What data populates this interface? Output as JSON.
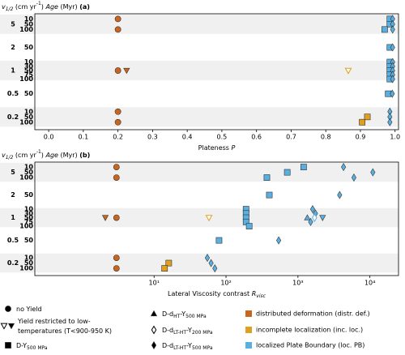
{
  "chart_data": [
    {
      "type": "scatter",
      "header": [
        {
          "text": "v",
          "italic": true
        },
        {
          "text": "1/2",
          "sub": true,
          "italic": true
        },
        {
          "text": " (cm yr"
        },
        {
          "text": "-1",
          "sup": true
        },
        {
          "text": ") "
        },
        {
          "text": "Age",
          "italic": true
        },
        {
          "text": " (Myr) "
        },
        {
          "text": "(a)",
          "bold": true
        }
      ],
      "xlabel": [
        {
          "text": "Plateness "
        },
        {
          "text": "P",
          "italic": true
        }
      ],
      "xlim": [
        -0.04,
        1.01
      ],
      "xticks": [
        {
          "value": 0,
          "label": "0.0"
        },
        0.1,
        0.2,
        0.3,
        0.4,
        0.5,
        0.6,
        0.7,
        0.8,
        0.9,
        {
          "value": 1,
          "label": "1.0"
        }
      ],
      "groups": [
        {
          "v": "5",
          "ages": [
            "10",
            "50",
            "100"
          ]
        },
        {
          "v": "2",
          "ages": [
            "50"
          ]
        },
        {
          "v": "1",
          "ages": [
            "10",
            "30",
            "50",
            "75",
            "100"
          ]
        },
        {
          "v": "0.5",
          "ages": [
            "50"
          ]
        },
        {
          "v": "0.2",
          "ages": [
            "10",
            "50",
            "100"
          ]
        }
      ],
      "points": [
        {
          "v": "5",
          "age": "10",
          "x": 0.2,
          "marker": "circle",
          "color": "#c9651c"
        },
        {
          "v": "5",
          "age": "100",
          "x": 0.2,
          "marker": "circle",
          "color": "#c9651c"
        },
        {
          "v": "5",
          "age": "10",
          "x": 0.985,
          "marker": "square",
          "color": "#58afe0"
        },
        {
          "v": "5",
          "age": "50",
          "x": 0.985,
          "marker": "square",
          "color": "#58afe0"
        },
        {
          "v": "5",
          "age": "100",
          "x": 0.97,
          "marker": "square",
          "color": "#58afe0"
        },
        {
          "v": "5",
          "age": "10",
          "x": 0.993,
          "marker": "diamond",
          "color": "#58afe0"
        },
        {
          "v": "5",
          "age": "50",
          "x": 0.993,
          "marker": "diamond",
          "color": "#58afe0"
        },
        {
          "v": "5",
          "age": "100",
          "x": 0.993,
          "marker": "diamond",
          "color": "#58afe0"
        },
        {
          "v": "2",
          "age": "50",
          "x": 0.985,
          "marker": "square",
          "color": "#58afe0"
        },
        {
          "v": "2",
          "age": "50",
          "x": 0.993,
          "marker": "diamond",
          "color": "#58afe0"
        },
        {
          "v": "1",
          "age": "50",
          "x": 0.2,
          "marker": "circle",
          "color": "#c9651c"
        },
        {
          "v": "1",
          "age": "50",
          "x": 0.225,
          "marker": "triangle-down",
          "color": "#c9651c"
        },
        {
          "v": "1",
          "age": "50",
          "x": 0.865,
          "marker": "triangle-down",
          "color": "#dfa020",
          "filled": false
        },
        {
          "v": "1",
          "age": "10",
          "x": 0.985,
          "marker": "square",
          "color": "#58afe0"
        },
        {
          "v": "1",
          "age": "30",
          "x": 0.985,
          "marker": "square",
          "color": "#58afe0"
        },
        {
          "v": "1",
          "age": "50",
          "x": 0.985,
          "marker": "square",
          "color": "#58afe0"
        },
        {
          "v": "1",
          "age": "75",
          "x": 0.985,
          "marker": "square",
          "color": "#58afe0"
        },
        {
          "v": "1",
          "age": "100",
          "x": 0.985,
          "marker": "square",
          "color": "#58afe0"
        },
        {
          "v": "1",
          "age": "10",
          "x": 0.993,
          "marker": "diamond",
          "color": "#58afe0"
        },
        {
          "v": "1",
          "age": "30",
          "x": 0.993,
          "marker": "diamond",
          "color": "#58afe0"
        },
        {
          "v": "1",
          "age": "50",
          "x": 0.993,
          "marker": "diamond",
          "color": "#58afe0"
        },
        {
          "v": "1",
          "age": "75",
          "x": 0.993,
          "marker": "diamond",
          "color": "#58afe0"
        },
        {
          "v": "1",
          "age": "100",
          "x": 0.993,
          "marker": "diamond",
          "color": "#58afe0"
        },
        {
          "v": "0.5",
          "age": "50",
          "x": 0.98,
          "marker": "square",
          "color": "#58afe0"
        },
        {
          "v": "0.5",
          "age": "50",
          "x": 0.992,
          "marker": "diamond",
          "color": "#58afe0"
        },
        {
          "v": "0.2",
          "age": "10",
          "x": 0.2,
          "marker": "circle",
          "color": "#c9651c"
        },
        {
          "v": "0.2",
          "age": "100",
          "x": 0.2,
          "marker": "circle",
          "color": "#c9651c"
        },
        {
          "v": "0.2",
          "age": "50",
          "x": 0.92,
          "marker": "square",
          "color": "#dfa020"
        },
        {
          "v": "0.2",
          "age": "100",
          "x": 0.905,
          "marker": "square",
          "color": "#dfa020"
        },
        {
          "v": "0.2",
          "age": "10",
          "x": 0.985,
          "marker": "diamond",
          "color": "#58afe0"
        },
        {
          "v": "0.2",
          "age": "50",
          "x": 0.985,
          "marker": "diamond",
          "color": "#58afe0"
        },
        {
          "v": "0.2",
          "age": "100",
          "x": 0.985,
          "marker": "diamond",
          "color": "#58afe0"
        }
      ]
    },
    {
      "type": "scatter",
      "log_x": true,
      "header": [
        {
          "text": "v",
          "italic": true
        },
        {
          "text": "1/2",
          "sub": true,
          "italic": true
        },
        {
          "text": " (cm yr"
        },
        {
          "text": "-1",
          "sup": true
        },
        {
          "text": ") "
        },
        {
          "text": "Age",
          "italic": true
        },
        {
          "text": " (Myr) "
        },
        {
          "text": "(b)",
          "bold": true
        }
      ],
      "xlabel": [
        {
          "text": "Lateral Viscosity contrast "
        },
        {
          "text": "R",
          "italic": true
        },
        {
          "text": "visc",
          "sub": true,
          "italic": true
        }
      ],
      "xlim": [
        0.22,
        25000
      ],
      "xticks": [
        {
          "value": 10,
          "label": "10¹"
        },
        {
          "value": 100,
          "label": "10²"
        },
        {
          "value": 1000,
          "label": "10³"
        },
        {
          "value": 10000,
          "label": "10⁴"
        }
      ],
      "groups": [
        {
          "v": "5",
          "ages": [
            "10",
            "50",
            "100"
          ]
        },
        {
          "v": "2",
          "ages": [
            "50"
          ]
        },
        {
          "v": "1",
          "ages": [
            "10",
            "30",
            "50",
            "75",
            "100"
          ]
        },
        {
          "v": "0.5",
          "ages": [
            "50"
          ]
        },
        {
          "v": "0.2",
          "ages": [
            "10",
            "50",
            "100"
          ]
        }
      ],
      "points": [
        {
          "v": "5",
          "age": "10",
          "x": 3,
          "marker": "circle",
          "color": "#c9651c"
        },
        {
          "v": "5",
          "age": "100",
          "x": 3,
          "marker": "circle",
          "color": "#c9651c"
        },
        {
          "v": "5",
          "age": "10",
          "x": 1200,
          "marker": "square",
          "color": "#58afe0"
        },
        {
          "v": "5",
          "age": "50",
          "x": 710,
          "marker": "square",
          "color": "#58afe0"
        },
        {
          "v": "5",
          "age": "100",
          "x": 370,
          "marker": "square",
          "color": "#58afe0"
        },
        {
          "v": "5",
          "age": "10",
          "x": 4300,
          "marker": "diamond",
          "color": "#58afe0"
        },
        {
          "v": "5",
          "age": "50",
          "x": 11000,
          "marker": "diamond",
          "color": "#58afe0"
        },
        {
          "v": "5",
          "age": "100",
          "x": 6000,
          "marker": "diamond",
          "color": "#58afe0"
        },
        {
          "v": "2",
          "age": "50",
          "x": 400,
          "marker": "square",
          "color": "#58afe0"
        },
        {
          "v": "2",
          "age": "50",
          "x": 3800,
          "marker": "diamond",
          "color": "#58afe0"
        },
        {
          "v": "1",
          "age": "50",
          "x": 2.1,
          "marker": "triangle-down",
          "color": "#c9651c"
        },
        {
          "v": "1",
          "age": "50",
          "x": 3,
          "marker": "circle",
          "color": "#c9651c"
        },
        {
          "v": "1",
          "age": "50",
          "x": 58,
          "marker": "triangle-down",
          "color": "#dfa020",
          "filled": false
        },
        {
          "v": "1",
          "age": "10",
          "x": 190,
          "marker": "square",
          "color": "#58afe0"
        },
        {
          "v": "1",
          "age": "30",
          "x": 190,
          "marker": "square",
          "color": "#58afe0"
        },
        {
          "v": "1",
          "age": "50",
          "x": 190,
          "marker": "square",
          "color": "#58afe0"
        },
        {
          "v": "1",
          "age": "75",
          "x": 190,
          "marker": "square",
          "color": "#58afe0"
        },
        {
          "v": "1",
          "age": "100",
          "x": 210,
          "marker": "square",
          "color": "#58afe0"
        },
        {
          "v": "1",
          "age": "50",
          "x": 1350,
          "marker": "triangle-up",
          "color": "#58afe0"
        },
        {
          "v": "1",
          "age": "10",
          "x": 1600,
          "marker": "diamond",
          "color": "#58afe0"
        },
        {
          "v": "1",
          "age": "30",
          "x": 1750,
          "marker": "diamond",
          "color": "#58afe0"
        },
        {
          "v": "1",
          "age": "50",
          "x": 1700,
          "marker": "diamond",
          "color": "#58afe0",
          "filled": false
        },
        {
          "v": "1",
          "age": "75",
          "x": 1500,
          "marker": "diamond",
          "color": "#58afe0"
        },
        {
          "v": "1",
          "age": "50",
          "x": 2200,
          "marker": "triangle-down",
          "color": "#58afe0"
        },
        {
          "v": "0.5",
          "age": "50",
          "x": 80,
          "marker": "square",
          "color": "#58afe0"
        },
        {
          "v": "0.5",
          "age": "50",
          "x": 540,
          "marker": "diamond",
          "color": "#58afe0"
        },
        {
          "v": "0.2",
          "age": "10",
          "x": 3,
          "marker": "circle",
          "color": "#c9651c"
        },
        {
          "v": "0.2",
          "age": "100",
          "x": 3,
          "marker": "circle",
          "color": "#c9651c"
        },
        {
          "v": "0.2",
          "age": "50",
          "x": 16,
          "marker": "square",
          "color": "#dfa020"
        },
        {
          "v": "0.2",
          "age": "100",
          "x": 14,
          "marker": "square",
          "color": "#dfa020"
        },
        {
          "v": "0.2",
          "age": "10",
          "x": 55,
          "marker": "diamond",
          "color": "#58afe0"
        },
        {
          "v": "0.2",
          "age": "50",
          "x": 62,
          "marker": "diamond",
          "color": "#58afe0"
        },
        {
          "v": "0.2",
          "age": "100",
          "x": 70,
          "marker": "diamond",
          "color": "#58afe0"
        }
      ]
    }
  ],
  "legend": {
    "markers": [
      {
        "markers": [
          "circle"
        ],
        "lines": [
          [
            {
              "text": "no Yield"
            }
          ]
        ]
      },
      {
        "markers": [
          "triangle-down-open",
          "triangle-down"
        ],
        "lines": [
          [
            {
              "text": "Yield restricted to low-"
            }
          ],
          [
            {
              "text": "temperatures (T<900-950 K)"
            }
          ]
        ]
      },
      {
        "markers": [
          "square"
        ],
        "lines": [
          [
            {
              "text": "D-Y"
            },
            {
              "text": "500 MPa",
              "sub": true
            }
          ]
        ]
      },
      {
        "markers": [
          "triangle-up"
        ],
        "lines": [
          [
            {
              "text": "D-d"
            },
            {
              "text": "HT",
              "sub": true
            },
            {
              "text": "-Y"
            },
            {
              "text": "500 MPa",
              "sub": true
            }
          ]
        ]
      },
      {
        "markers": [
          "diamond-open"
        ],
        "lines": [
          [
            {
              "text": "D-d"
            },
            {
              "text": "LT-HT",
              "sub": true
            },
            {
              "text": "-Y"
            },
            {
              "text": "200 MPa",
              "sub": true
            }
          ]
        ]
      },
      {
        "markers": [
          "diamond"
        ],
        "lines": [
          [
            {
              "text": "D-d"
            },
            {
              "text": "LT-HT",
              "sub": true
            },
            {
              "text": "-Y"
            },
            {
              "text": "500 MPa",
              "sub": true
            }
          ]
        ]
      }
    ],
    "colors": [
      {
        "color": "#c9651c",
        "label": "distributed deformation (distr. def.)"
      },
      {
        "color": "#dfa020",
        "label": "incomplete localization (inc. loc.)"
      },
      {
        "color": "#58afe0",
        "label": "localized Plate Boundary (loc. PB)"
      }
    ]
  }
}
